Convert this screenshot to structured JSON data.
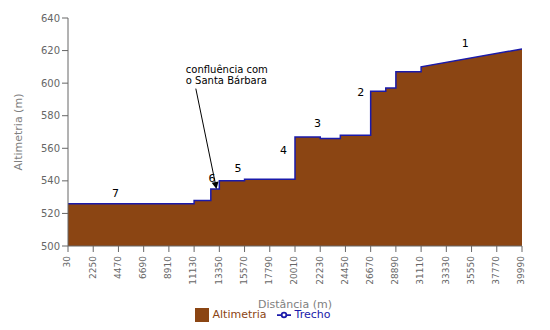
{
  "chart_data": {
    "type": "area",
    "xlabel": "Distância (m)",
    "ylabel": "Altimetria (m)",
    "x": [
      30,
      11130,
      11130,
      12600,
      12600,
      13350,
      13350,
      15570,
      15570,
      17790,
      17790,
      20010,
      20010,
      22230,
      22230,
      24000,
      24000,
      26670,
      26670,
      28000,
      28000,
      28890,
      28890,
      29500,
      29500,
      31110,
      31110,
      39990
    ],
    "series": [
      {
        "name": "Altimetria",
        "type": "area",
        "color": "#8B4513",
        "base": 500,
        "values": [
          526,
          526,
          528,
          528,
          535,
          535,
          540,
          540,
          541,
          541,
          541,
          541,
          567,
          567,
          566,
          566,
          568,
          568,
          595,
          595,
          597,
          597,
          607,
          607,
          607,
          607,
          610,
          621
        ]
      },
      {
        "name": "Trecho",
        "type": "line",
        "color": "#1a1aaa",
        "values": [
          526,
          526,
          528,
          528,
          535,
          535,
          540,
          540,
          541,
          541,
          541,
          541,
          567,
          567,
          566,
          566,
          568,
          568,
          595,
          595,
          597,
          597,
          607,
          607,
          607,
          607,
          610,
          621
        ]
      }
    ],
    "xlim": [
      30,
      39990
    ],
    "xticks": [
      30,
      2250,
      4470,
      6690,
      8910,
      11130,
      13350,
      15570,
      17790,
      20010,
      22230,
      24450,
      26670,
      28890,
      31110,
      33330,
      35550,
      37770,
      39990
    ],
    "ylim": [
      500,
      640
    ],
    "yticks": [
      500,
      520,
      540,
      560,
      580,
      600,
      620,
      640
    ],
    "grid": false,
    "legend": "bottom",
    "annotations": [
      {
        "text": "confluência com\no Santa Bárbara",
        "x": 13100,
        "y": 535,
        "text_x": 10400,
        "text_y": 612
      }
    ],
    "segment_labels": [
      {
        "label": "7",
        "x": 4200,
        "y": 529
      },
      {
        "label": "6",
        "x": 12700,
        "y": 538
      },
      {
        "label": "5",
        "x": 15000,
        "y": 544
      },
      {
        "label": "4",
        "x": 19000,
        "y": 555
      },
      {
        "label": "3",
        "x": 22000,
        "y": 572
      },
      {
        "label": "2",
        "x": 25800,
        "y": 591
      },
      {
        "label": "1",
        "x": 35000,
        "y": 621
      }
    ]
  }
}
